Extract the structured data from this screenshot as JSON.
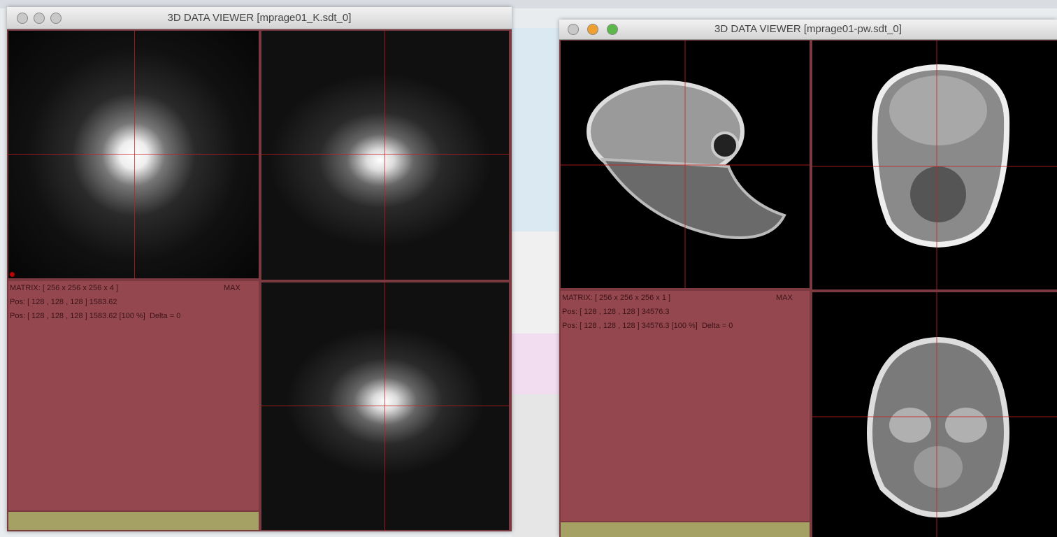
{
  "windows": [
    {
      "title": "3D DATA VIEWER [mprage01_K.sdt_0]",
      "info": {
        "matrix": "MATRIX: [ 256 x 256 x 256 x 4 ]",
        "max_label": "MAX",
        "pos": "Pos: [ 128 , 128 , 128 ] 1583.62",
        "pos_detail": "Pos: [ 128 , 128 , 128 ] 1583.62 [100 %]  Delta = 0"
      }
    },
    {
      "title": "3D DATA VIEWER [mprage01-pw.sdt_0]",
      "info": {
        "matrix": "MATRIX: [ 256 x 256 x 256 x 1 ]",
        "max_label": "MAX",
        "pos": "Pos: [ 128 , 128 , 128 ] 34576.3",
        "pos_detail": "Pos: [ 128 , 128 , 128 ] 34576.3 [100 %]  Delta = 0"
      }
    }
  ]
}
